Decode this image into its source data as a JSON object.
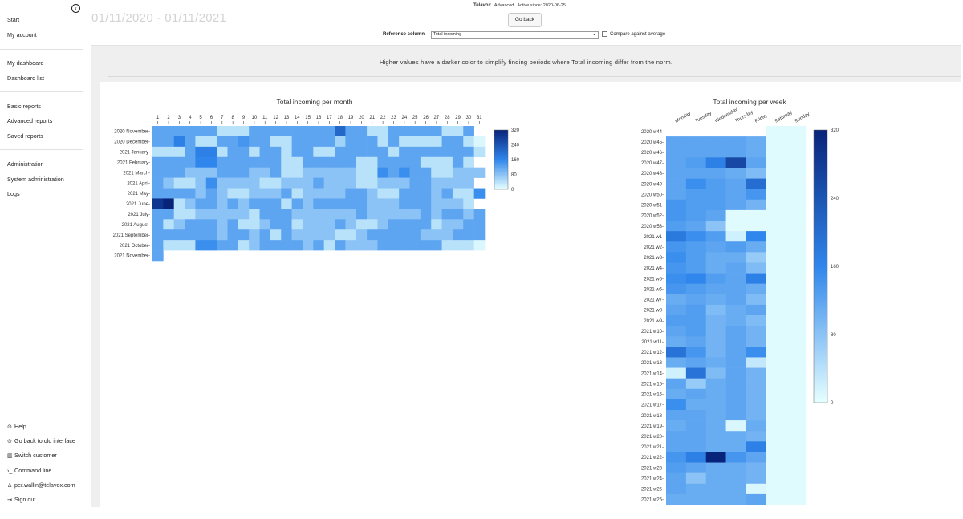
{
  "topbar": {
    "brand": "Telavox",
    "plan": "Advanced",
    "active": "Active since: 2020-06-25"
  },
  "date_range": "01/11/2020 - 01/11/2021",
  "go_back_label": "Go back",
  "reference": {
    "label": "Reference column",
    "value": "Total incoming",
    "compare_label": "Compare against average"
  },
  "hint": "Higher values have a darker color to simplify finding periods where Total incoming differ from the norm.",
  "sidebar": {
    "collapse_icon": "circle-chevron-left-icon",
    "top_items": [
      {
        "label": "Start"
      },
      {
        "label": "My account"
      },
      {
        "label": "My dashboard"
      },
      {
        "label": "Dashboard list"
      },
      {
        "label": "Basic reports"
      },
      {
        "label": "Advanced reports"
      },
      {
        "label": "Saved reports"
      },
      {
        "label": "Administration"
      },
      {
        "label": "System administration"
      },
      {
        "label": "Logs"
      }
    ],
    "bottom_items": [
      {
        "label": "Help",
        "icon": "help-icon"
      },
      {
        "label": "Go back to old interface",
        "icon": "back-icon"
      },
      {
        "label": "Switch customer",
        "icon": "switch-customer-icon"
      },
      {
        "label": "Command line",
        "icon": "terminal-icon"
      },
      {
        "label": "per.wallin@telavox.com",
        "icon": "user-icon"
      },
      {
        "label": "Sign out",
        "icon": "sign-out-icon"
      }
    ]
  },
  "colors": {
    "low": "#e6ffff",
    "mid": "#2f86ec",
    "high": "#08237a",
    "accent": "#2f86ec"
  },
  "chart_data": [
    {
      "type": "heatmap",
      "title": "Total incoming per month",
      "x": [
        "1",
        "2",
        "3",
        "4",
        "5",
        "6",
        "7",
        "8",
        "9",
        "10",
        "11",
        "12",
        "13",
        "14",
        "15",
        "16",
        "17",
        "18",
        "19",
        "20",
        "21",
        "22",
        "23",
        "24",
        "25",
        "26",
        "27",
        "28",
        "29",
        "30",
        "31"
      ],
      "y": [
        "2020 November",
        "2020 December",
        "2021 January",
        "2021 February",
        "2021 March",
        "2021 April",
        "2021 May",
        "2021 June",
        "2021 July",
        "2021 August",
        "2021 September",
        "2021 October",
        "2021 November"
      ],
      "z": [
        [
          120,
          120,
          120,
          120,
          120,
          120,
          40,
          40,
          40,
          120,
          120,
          120,
          120,
          120,
          120,
          120,
          120,
          210,
          120,
          120,
          40,
          40,
          120,
          120,
          120,
          120,
          120,
          40,
          40,
          120,
          null
        ],
        [
          120,
          120,
          170,
          120,
          40,
          40,
          120,
          120,
          140,
          120,
          120,
          40,
          40,
          120,
          120,
          120,
          120,
          60,
          120,
          120,
          120,
          40,
          120,
          40,
          40,
          40,
          40,
          120,
          120,
          40,
          10
        ],
        [
          40,
          40,
          40,
          120,
          170,
          170,
          40,
          120,
          120,
          40,
          120,
          120,
          40,
          120,
          120,
          40,
          40,
          120,
          120,
          120,
          120,
          120,
          40,
          120,
          120,
          120,
          120,
          120,
          120,
          120,
          40
        ],
        [
          120,
          120,
          120,
          120,
          160,
          160,
          120,
          120,
          120,
          120,
          120,
          120,
          40,
          40,
          120,
          120,
          120,
          120,
          120,
          40,
          40,
          120,
          120,
          120,
          120,
          40,
          40,
          40,
          120,
          40,
          null
        ],
        [
          120,
          120,
          120,
          80,
          80,
          80,
          120,
          120,
          120,
          80,
          80,
          120,
          40,
          40,
          80,
          80,
          80,
          80,
          80,
          40,
          40,
          150,
          120,
          150,
          120,
          120,
          40,
          40,
          80,
          80,
          80
        ],
        [
          120,
          80,
          40,
          40,
          80,
          150,
          80,
          80,
          80,
          80,
          40,
          40,
          80,
          80,
          80,
          120,
          80,
          80,
          80,
          40,
          40,
          80,
          80,
          80,
          120,
          120,
          80,
          80,
          80,
          80,
          null
        ],
        [
          120,
          120,
          120,
          120,
          80,
          120,
          80,
          40,
          40,
          80,
          80,
          80,
          120,
          40,
          80,
          80,
          80,
          80,
          120,
          120,
          80,
          40,
          40,
          120,
          120,
          120,
          80,
          120,
          40,
          40,
          150
        ],
        [
          290,
          320,
          40,
          80,
          120,
          120,
          80,
          120,
          80,
          120,
          120,
          120,
          40,
          120,
          80,
          120,
          120,
          120,
          120,
          120,
          80,
          80,
          80,
          120,
          120,
          120,
          80,
          80,
          80,
          40,
          null
        ],
        [
          120,
          120,
          40,
          40,
          80,
          80,
          80,
          80,
          80,
          40,
          120,
          120,
          120,
          80,
          80,
          80,
          80,
          80,
          80,
          120,
          80,
          80,
          80,
          80,
          80,
          120,
          80,
          120,
          120,
          80,
          120
        ],
        [
          120,
          40,
          80,
          120,
          120,
          120,
          80,
          120,
          40,
          40,
          80,
          120,
          120,
          40,
          80,
          80,
          80,
          120,
          80,
          40,
          40,
          80,
          120,
          120,
          120,
          120,
          40,
          80,
          80,
          120,
          120
        ],
        [
          120,
          120,
          120,
          120,
          120,
          120,
          80,
          120,
          120,
          80,
          120,
          40,
          120,
          80,
          80,
          80,
          80,
          40,
          40,
          80,
          120,
          120,
          120,
          120,
          120,
          80,
          80,
          80,
          120,
          120,
          120
        ],
        [
          120,
          40,
          40,
          40,
          150,
          150,
          120,
          120,
          40,
          80,
          120,
          120,
          120,
          120,
          80,
          120,
          40,
          120,
          80,
          80,
          80,
          120,
          120,
          120,
          120,
          120,
          120,
          40,
          40,
          40,
          10
        ],
        [
          120,
          null,
          null,
          null,
          null,
          null,
          null,
          null,
          null,
          null,
          null,
          null,
          null,
          null,
          null,
          null,
          null,
          null,
          null,
          null,
          null,
          null,
          null,
          null,
          null,
          null,
          null,
          null,
          null,
          null,
          null
        ]
      ],
      "colorbar": {
        "min": 0,
        "max": 320,
        "ticks": [
          0,
          80,
          160,
          240,
          320
        ]
      }
    },
    {
      "type": "heatmap",
      "title": "Total incoming per week",
      "x": [
        "Monday",
        "Tuesday",
        "Wednesday",
        "Thursday",
        "Friday",
        "Saturday",
        "Sunday"
      ],
      "y": [
        "2020 w44",
        "2020 w45",
        "2020 w46",
        "2020 w47",
        "2020 w48",
        "2020 w49",
        "2020 w50",
        "2020 w51",
        "2020 w52",
        "2020 w53",
        "2021 w1",
        "2021 w2",
        "2021 w3",
        "2021 w4",
        "2021 w5",
        "2021 w6",
        "2021 w7",
        "2021 w8",
        "2021 w9",
        "2021 w10",
        "2021 w11",
        "2021 w12",
        "2021 w13",
        "2021 w14",
        "2021 w15",
        "2021 w16",
        "2021 w17",
        "2021 w18",
        "2021 w19",
        "2021 w20",
        "2021 w21",
        "2021 w22",
        "2021 w23",
        "2021 w24",
        "2021 w25",
        "2021 w26"
      ],
      "z": [
        [
          null,
          null,
          null,
          null,
          null,
          5,
          5
        ],
        [
          120,
          120,
          120,
          120,
          110,
          5,
          5
        ],
        [
          120,
          120,
          120,
          120,
          110,
          5,
          5
        ],
        [
          120,
          130,
          170,
          260,
          120,
          5,
          5
        ],
        [
          120,
          120,
          120,
          110,
          90,
          5,
          5
        ],
        [
          120,
          150,
          130,
          120,
          200,
          5,
          5
        ],
        [
          120,
          130,
          130,
          120,
          140,
          5,
          5
        ],
        [
          140,
          130,
          130,
          120,
          100,
          5,
          5
        ],
        [
          140,
          130,
          120,
          5,
          5,
          5,
          5
        ],
        [
          130,
          120,
          80,
          5,
          5,
          5,
          5
        ],
        [
          180,
          150,
          130,
          20,
          160,
          5,
          5
        ],
        [
          140,
          130,
          120,
          130,
          110,
          5,
          5
        ],
        [
          150,
          130,
          110,
          110,
          70,
          5,
          5
        ],
        [
          140,
          130,
          110,
          120,
          90,
          5,
          5
        ],
        [
          150,
          160,
          130,
          120,
          170,
          5,
          5
        ],
        [
          140,
          130,
          120,
          120,
          110,
          5,
          5
        ],
        [
          110,
          120,
          110,
          120,
          90,
          5,
          5
        ],
        [
          120,
          130,
          90,
          110,
          120,
          5,
          5
        ],
        [
          130,
          130,
          100,
          110,
          90,
          5,
          5
        ],
        [
          120,
          130,
          100,
          120,
          100,
          5,
          5
        ],
        [
          110,
          120,
          100,
          120,
          100,
          5,
          5
        ],
        [
          190,
          140,
          100,
          120,
          150,
          5,
          5
        ],
        [
          110,
          120,
          110,
          120,
          30,
          5,
          5
        ],
        [
          20,
          190,
          90,
          120,
          100,
          5,
          5
        ],
        [
          120,
          70,
          110,
          120,
          100,
          5,
          5
        ],
        [
          110,
          120,
          110,
          120,
          100,
          5,
          5
        ],
        [
          150,
          110,
          110,
          120,
          100,
          5,
          5
        ],
        [
          120,
          120,
          110,
          120,
          100,
          5,
          5
        ],
        [
          110,
          120,
          110,
          10,
          110,
          5,
          5
        ],
        [
          120,
          120,
          110,
          110,
          100,
          5,
          5
        ],
        [
          120,
          120,
          110,
          110,
          170,
          5,
          5
        ],
        [
          140,
          170,
          320,
          140,
          120,
          5,
          5
        ],
        [
          130,
          120,
          110,
          110,
          100,
          5,
          5
        ],
        [
          120,
          80,
          110,
          110,
          100,
          5,
          5
        ],
        [
          120,
          110,
          110,
          110,
          10,
          5,
          5
        ],
        [
          110,
          110,
          110,
          110,
          120,
          5,
          5
        ]
      ],
      "colorbar": {
        "min": 0,
        "max": 320,
        "ticks": [
          0,
          80,
          160,
          240,
          320
        ]
      }
    }
  ]
}
